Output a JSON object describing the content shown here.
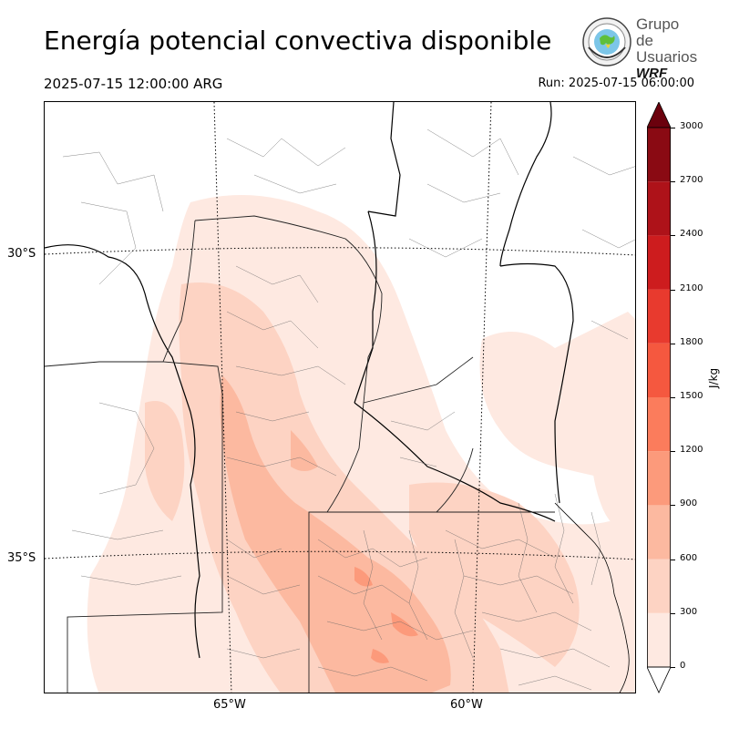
{
  "title": "Energía potencial convectiva disponible",
  "valid_time": "2025-07-15 12:00:00 ARG",
  "run_time": "Run: 2025-07-15 06:00:00",
  "logo": {
    "line1": "Grupo de",
    "line2": "Usuarios",
    "line3": "WRF"
  },
  "map": {
    "lat_labels": [
      "30°S",
      "35°S"
    ],
    "lon_labels": [
      "65°W",
      "60°W"
    ]
  },
  "colorbar": {
    "unit": "J/kg",
    "ticks": [
      "0",
      "300",
      "600",
      "900",
      "1200",
      "1500",
      "1800",
      "2100",
      "2400",
      "2700",
      "3000"
    ],
    "colors": [
      "#fee9e1",
      "#fdd3c3",
      "#fcb9a0",
      "#fc9a7b",
      "#fb7c5c",
      "#f5583f",
      "#e83a2e",
      "#cd1c1e",
      "#ae1219",
      "#8a0a13",
      "#6b010d"
    ]
  }
}
